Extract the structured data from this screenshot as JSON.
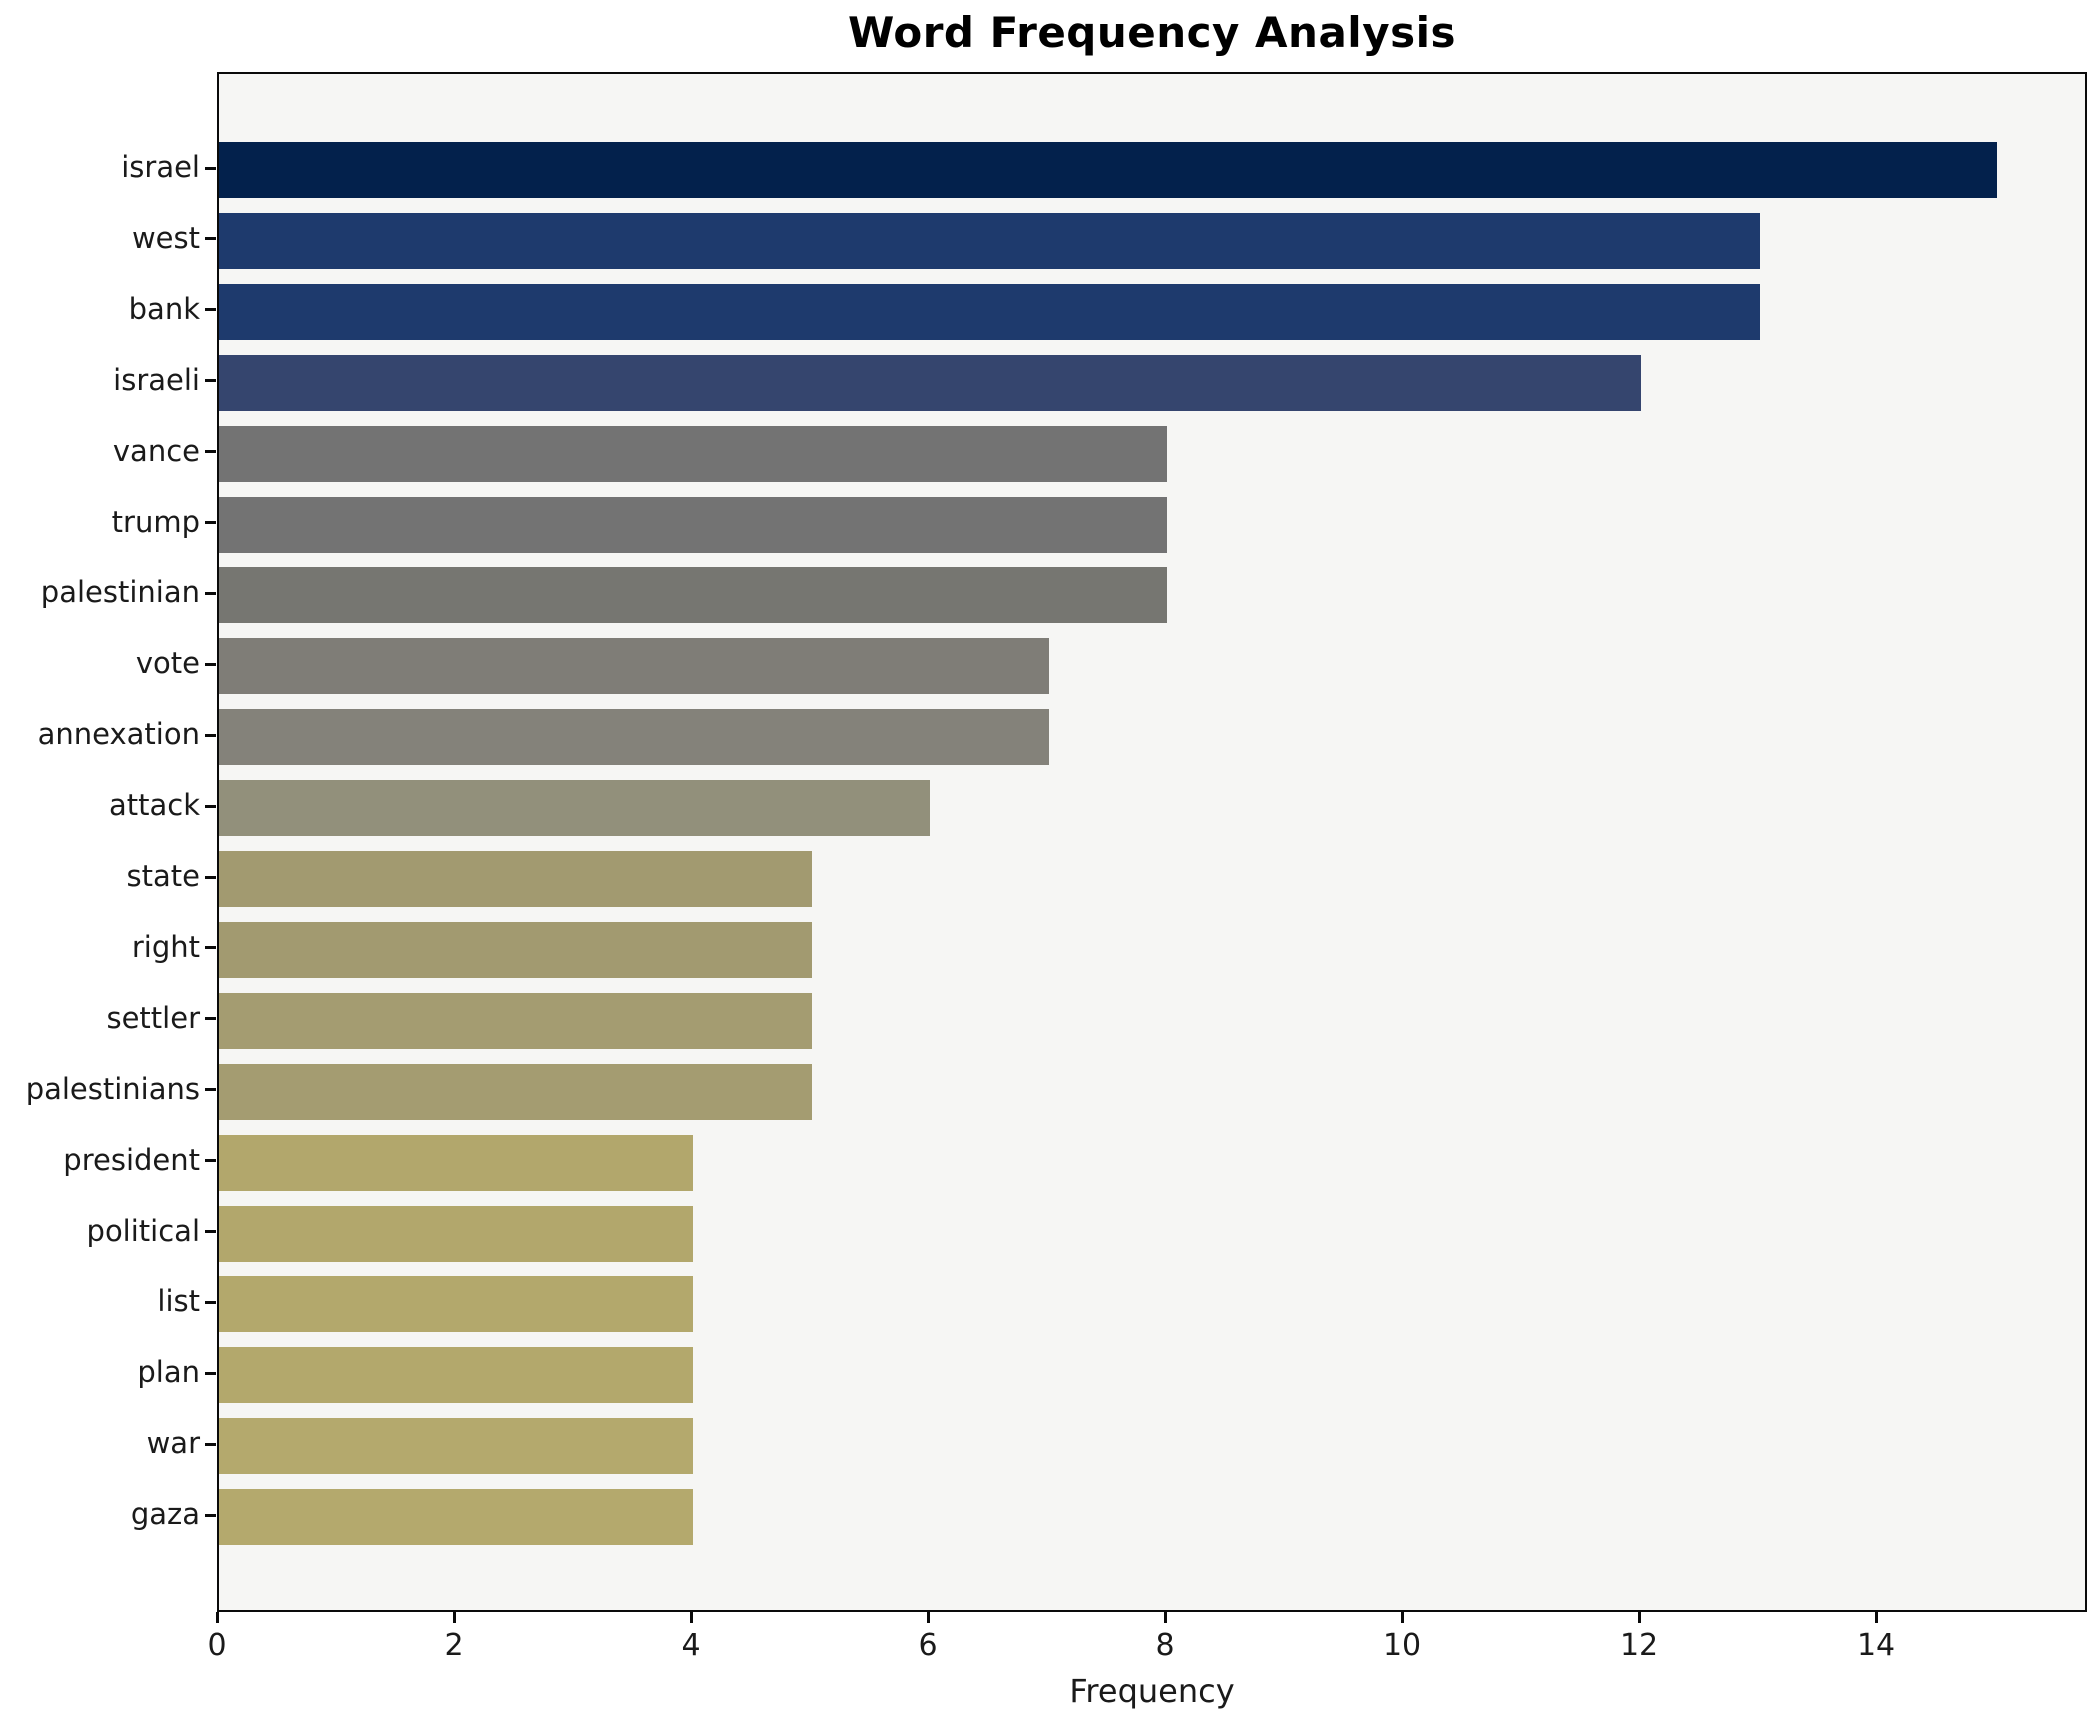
{
  "title": "Word Frequency Analysis",
  "xlabel": "Frequency",
  "chart_data": {
    "type": "bar",
    "orientation": "horizontal",
    "title": "Word Frequency Analysis",
    "xlabel": "Frequency",
    "ylabel": "",
    "grid": false,
    "legend_position": "none",
    "plot_background": "#f6f6f4",
    "figure_background": "#ffffff",
    "xlim": [
      0,
      15.78
    ],
    "xticks": [
      0,
      2,
      4,
      6,
      8,
      10,
      12,
      14
    ],
    "categories": [
      "israel",
      "west",
      "bank",
      "israeli",
      "vance",
      "trump",
      "palestinian",
      "vote",
      "annexation",
      "attack",
      "state",
      "right",
      "settler",
      "palestinians",
      "president",
      "political",
      "list",
      "plan",
      "war",
      "gaza"
    ],
    "values": [
      15,
      13,
      13,
      12,
      8,
      8,
      8,
      7,
      7,
      6,
      5,
      5,
      5,
      5,
      4,
      4,
      4,
      4,
      4,
      4
    ],
    "bar_colors": [
      "#03214c",
      "#1e3a6d",
      "#1e3a6d",
      "#35456e",
      "#737373",
      "#737373",
      "#767671",
      "#7f7d77",
      "#84827a",
      "#92907b",
      "#a29a70",
      "#a29a70",
      "#a49c71",
      "#a49c71",
      "#b2a76c",
      "#b2a76c",
      "#b3a86c",
      "#b3a86c",
      "#b4a96d",
      "#b4a96d"
    ]
  }
}
